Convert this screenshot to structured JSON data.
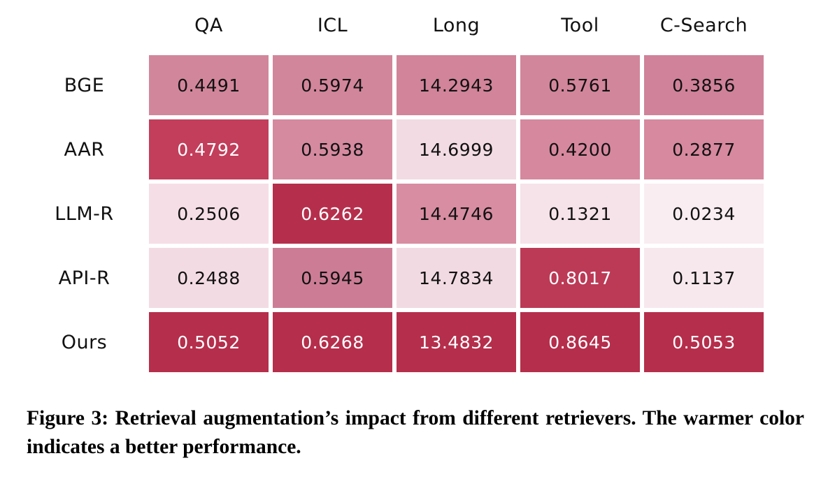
{
  "figure": {
    "caption": "Figure 3: Retrieval augmentation’s impact from different retrievers. The warmer color indicates a better performance."
  },
  "chart_data": {
    "type": "heatmap",
    "columns": [
      "QA",
      "ICL",
      "Long",
      "Tool",
      "C-Search"
    ],
    "rows": [
      "BGE",
      "AAR",
      "LLM-R",
      "API-R",
      "Ours"
    ],
    "values": [
      [
        "0.4491",
        "0.5974",
        "14.2943",
        "0.5761",
        "0.3856"
      ],
      [
        "0.4792",
        "0.5938",
        "14.6999",
        "0.4200",
        "0.2877"
      ],
      [
        "0.2506",
        "0.6262",
        "14.4746",
        "0.1321",
        "0.0234"
      ],
      [
        "0.2488",
        "0.5945",
        "14.7834",
        "0.8017",
        "0.1137"
      ],
      [
        "0.5052",
        "0.6268",
        "13.4832",
        "0.8645",
        "0.5053"
      ]
    ],
    "cell_colors": [
      [
        "#d2869b",
        "#d2869b",
        "#d1849a",
        "#d2869b",
        "#d0829a"
      ],
      [
        "#c23e5b",
        "#d58aa0",
        "#f2dbe3",
        "#d6889e",
        "#d6899f"
      ],
      [
        "#f5dee6",
        "#b52f4c",
        "#d88da2",
        "#f6e2e9",
        "#f9edf1"
      ],
      [
        "#f3dbe3",
        "#cc7d95",
        "#f2dae3",
        "#bc3a56",
        "#f7e8ee"
      ],
      [
        "#b52e4b",
        "#b52e4b",
        "#b52e4b",
        "#b52e4b",
        "#b52e4b"
      ]
    ],
    "cell_text_colors": [
      [
        "#111111",
        "#111111",
        "#111111",
        "#111111",
        "#111111"
      ],
      [
        "#ffffff",
        "#111111",
        "#111111",
        "#111111",
        "#111111"
      ],
      [
        "#111111",
        "#ffffff",
        "#111111",
        "#111111",
        "#111111"
      ],
      [
        "#111111",
        "#111111",
        "#111111",
        "#ffffff",
        "#111111"
      ],
      [
        "#ffffff",
        "#ffffff",
        "#ffffff",
        "#ffffff",
        "#ffffff"
      ]
    ],
    "title": "",
    "legend": "none",
    "colormap_note_colors": {
      "best": "#b52e4b",
      "worst": "#f9edf1"
    }
  }
}
